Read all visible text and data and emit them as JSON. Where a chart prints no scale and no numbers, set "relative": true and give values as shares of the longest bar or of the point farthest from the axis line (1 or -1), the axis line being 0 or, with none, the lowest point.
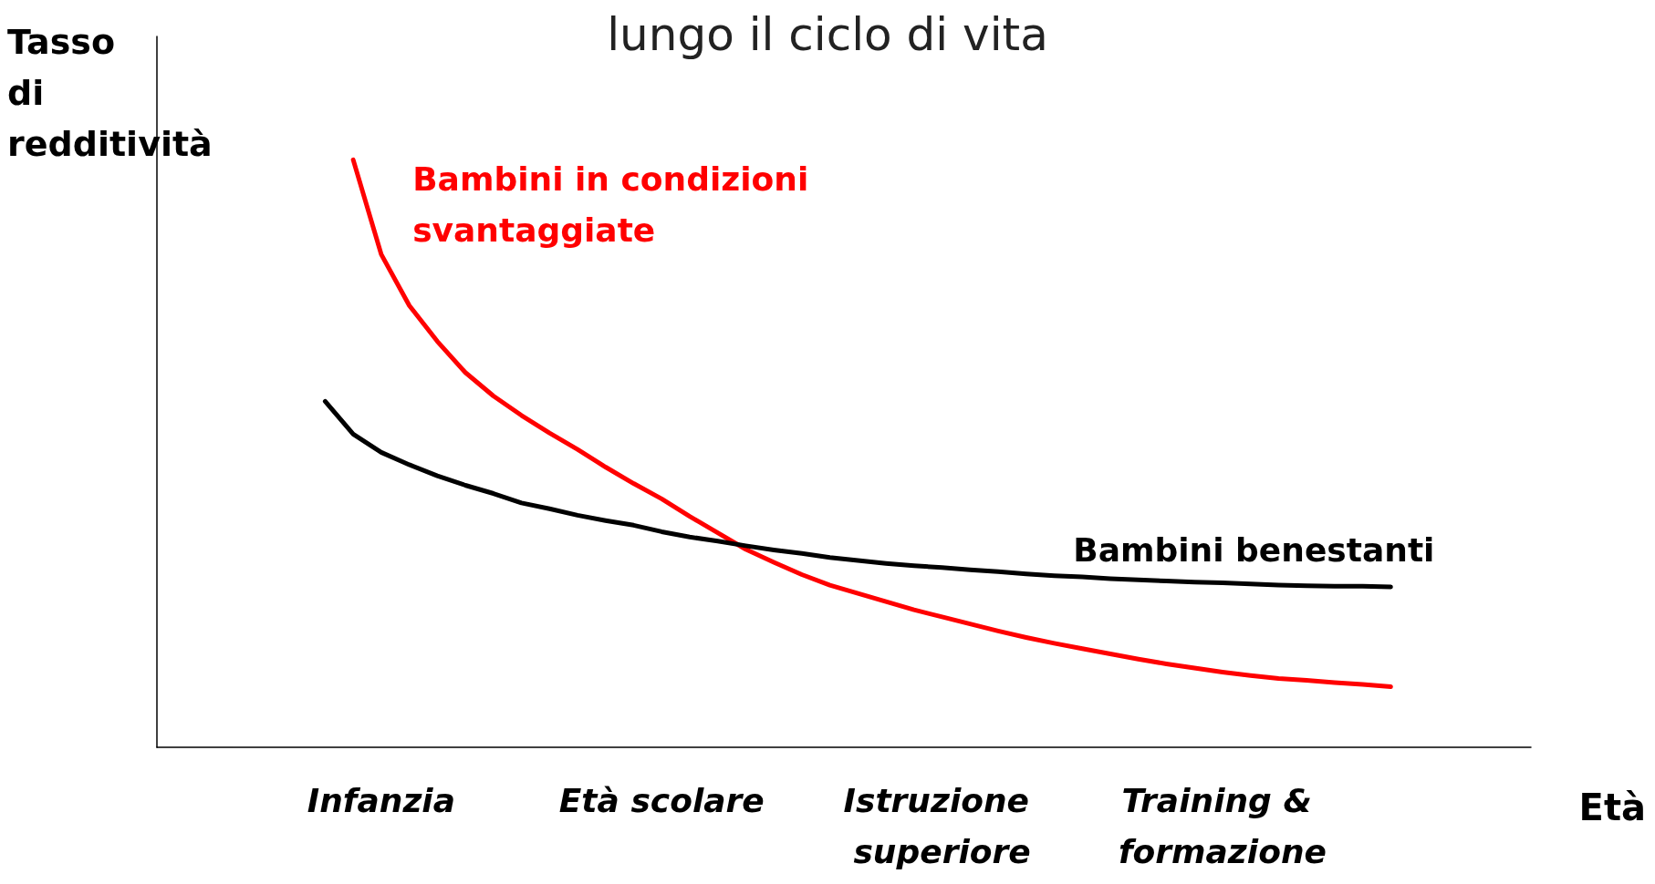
{
  "chart_data": {
    "type": "line",
    "title": "lungo il ciclo di vita",
    "xlabel": "Età",
    "ylabel": "Tasso di redditività",
    "relative": true,
    "categories": [
      null,
      null,
      null,
      null,
      null,
      null,
      null,
      null,
      "Infanzia",
      null,
      null,
      null,
      null,
      null,
      null,
      null,
      null,
      null,
      "Età scolare",
      null,
      null,
      null,
      null,
      null,
      null,
      null,
      null,
      null,
      "Istruzione superiore",
      null,
      null,
      null,
      null,
      null,
      null,
      null,
      null,
      null,
      "Training & formazione",
      null,
      null,
      null,
      null,
      null,
      null,
      null,
      null,
      null,
      null,
      null
    ],
    "series": [
      {
        "name": "Bambini in condizioni svantaggiate",
        "color": "#ff0000",
        "values": [
          null,
          null,
          null,
          null,
          null,
          null,
          null,
          1,
          0.839,
          0.752,
          0.691,
          0.638,
          0.598,
          0.565,
          0.535,
          0.507,
          0.477,
          0.449,
          0.423,
          0.393,
          0.365,
          0.337,
          0.315,
          0.294,
          0.276,
          0.262,
          0.248,
          0.234,
          0.222,
          0.21,
          0.198,
          0.187,
          0.177,
          0.168,
          0.159,
          0.15,
          0.142,
          0.135,
          0.128,
          0.122,
          0.117,
          0.114,
          0.11,
          0.107,
          0.103,
          null,
          null,
          null,
          null,
          null
        ]
      },
      {
        "name": "Bambini benestanti",
        "color": "#000000",
        "values": [
          null,
          null,
          null,
          null,
          null,
          null,
          0.589,
          0.533,
          0.502,
          0.481,
          0.462,
          0.446,
          0.432,
          0.416,
          0.406,
          0.395,
          0.386,
          0.378,
          0.367,
          0.358,
          0.351,
          0.343,
          0.336,
          0.33,
          0.323,
          0.318,
          0.313,
          0.309,
          0.306,
          0.302,
          0.299,
          0.295,
          0.292,
          0.29,
          0.287,
          0.285,
          0.283,
          0.281,
          0.28,
          0.278,
          0.276,
          0.275,
          0.274,
          0.274,
          0.273,
          null,
          null,
          null,
          null,
          null
        ]
      }
    ],
    "grid": false,
    "legend": false,
    "marker": "none",
    "line_style": "solid"
  }
}
